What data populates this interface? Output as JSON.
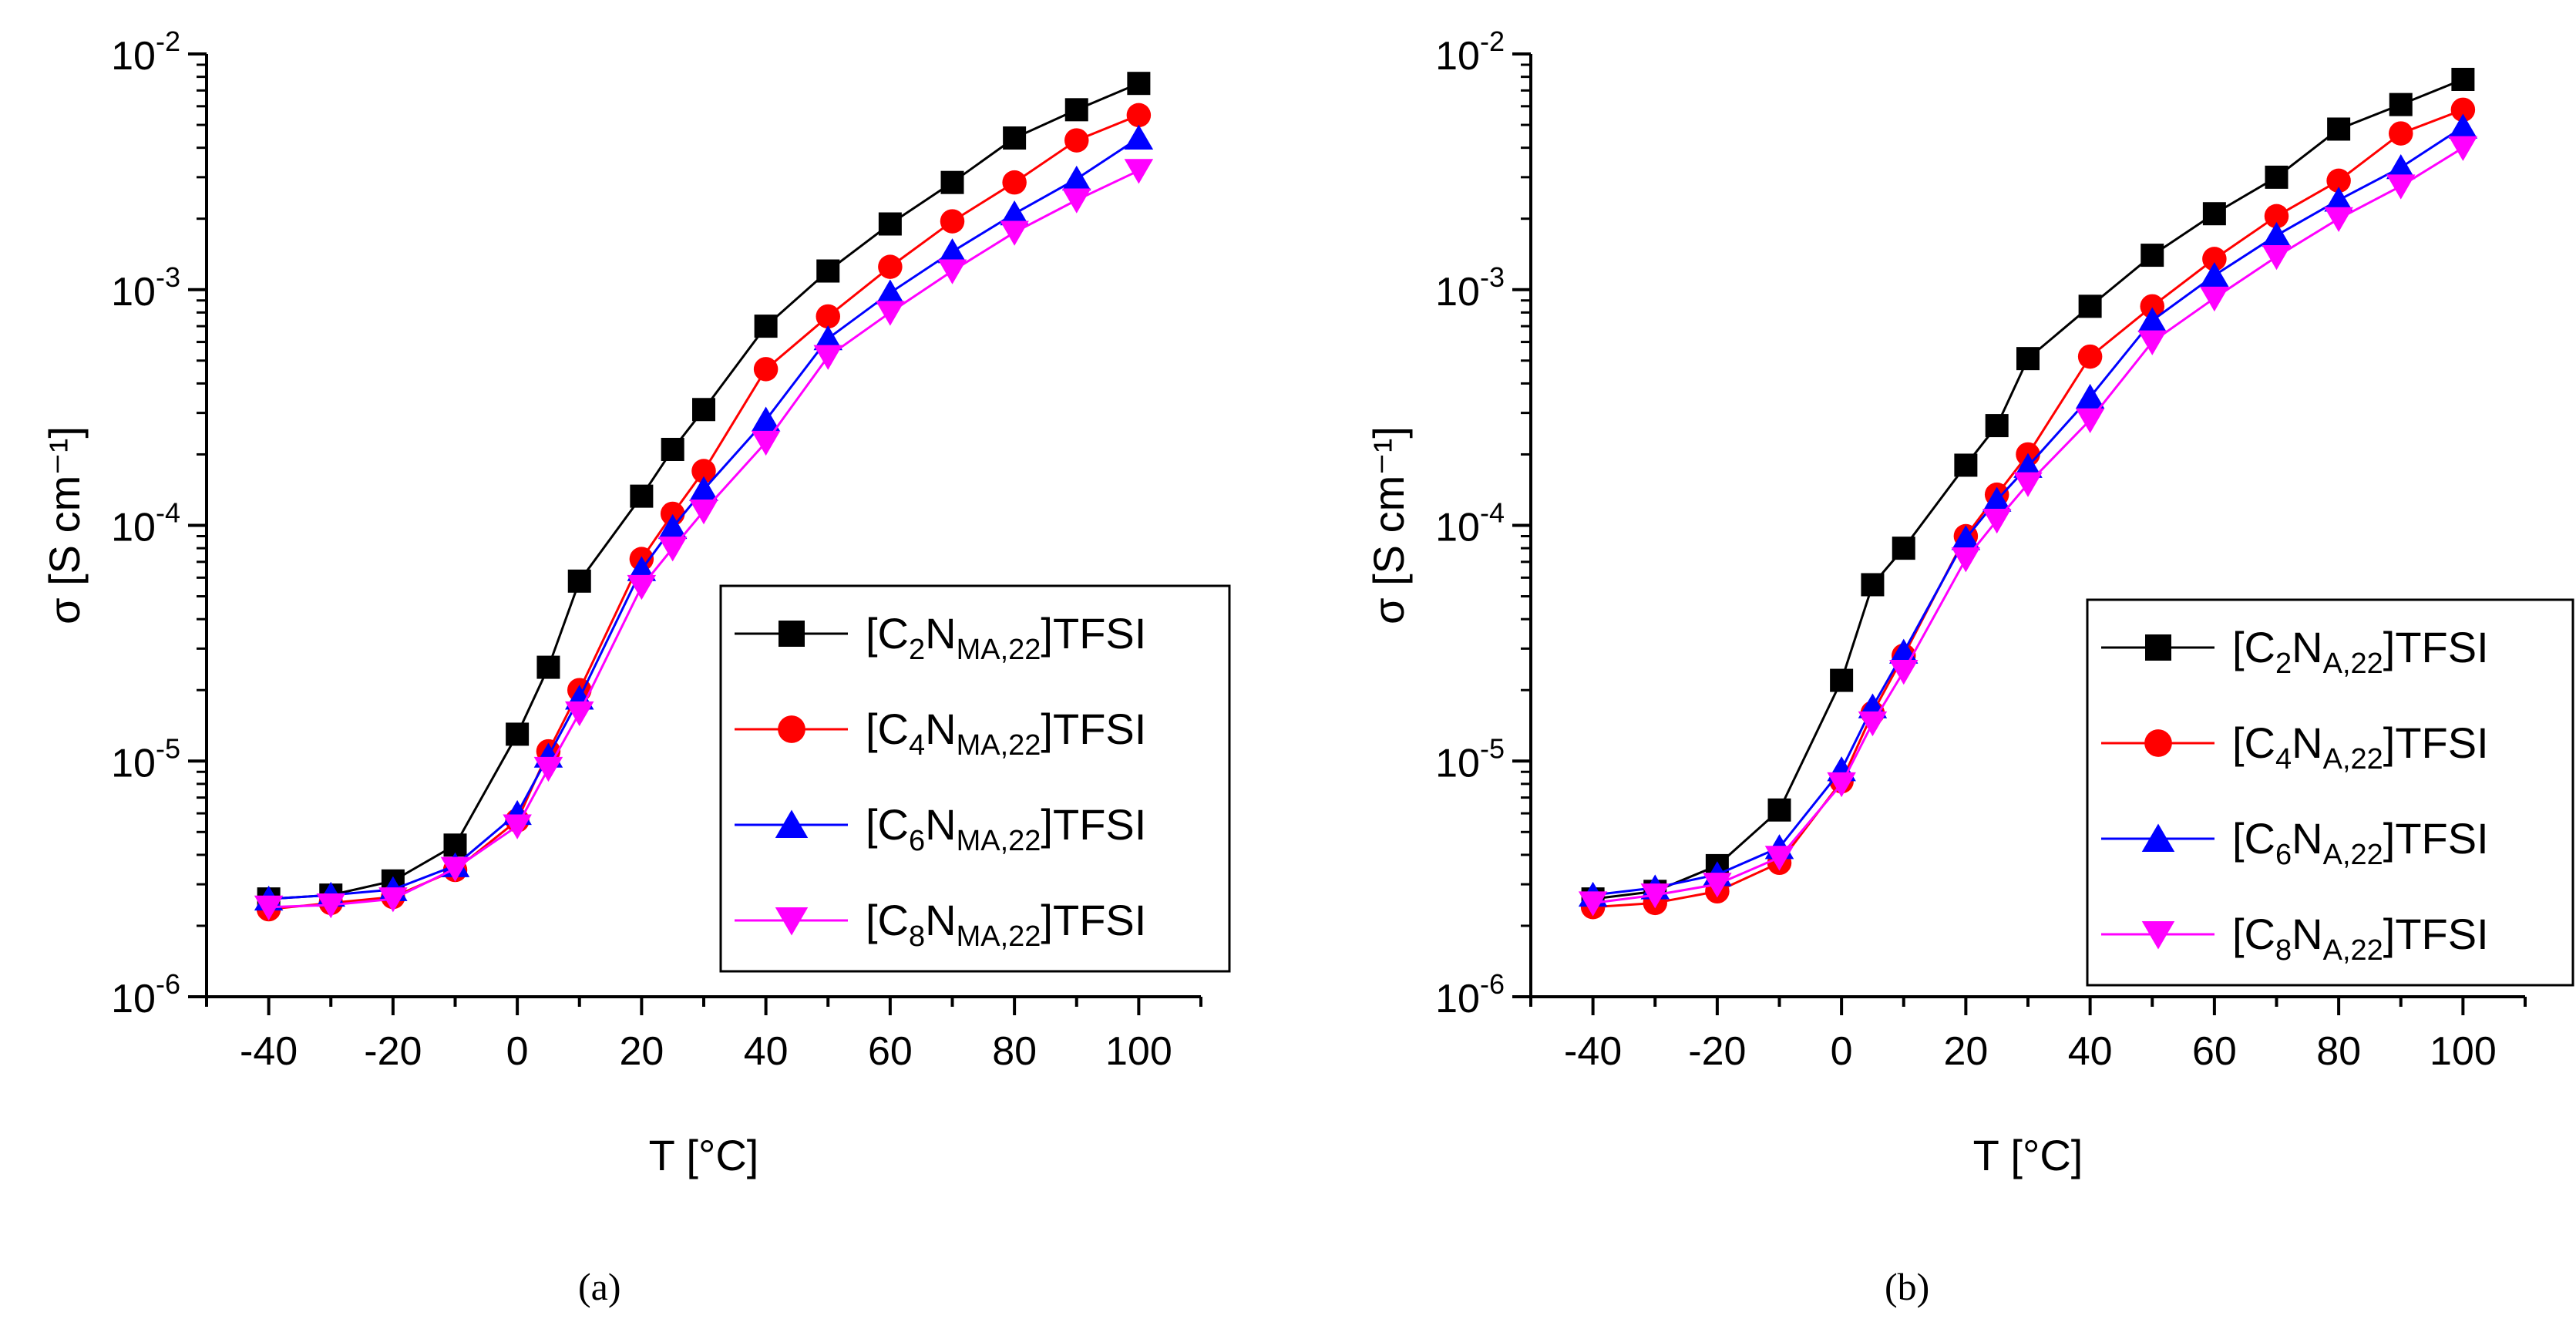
{
  "figure": {
    "panel_labels": [
      "(a)",
      "(b)"
    ]
  },
  "chart_data": [
    {
      "type": "line",
      "panel": "(a)",
      "xlabel": "T [°C]",
      "ylabel": "σ [S cm⁻¹]",
      "xlim": [
        -50,
        110
      ],
      "x_ticks": [
        -40,
        -20,
        0,
        20,
        40,
        60,
        80,
        100
      ],
      "y_scale": "log",
      "ylim": [
        1e-06,
        0.01
      ],
      "y_ticks": [
        {
          "base": "10",
          "exp": "-6"
        },
        {
          "base": "10",
          "exp": "-5"
        },
        {
          "base": "10",
          "exp": "-4"
        },
        {
          "base": "10",
          "exp": "-3"
        },
        {
          "base": "10",
          "exp": "-2"
        }
      ],
      "grid": false,
      "legend_position": "lower-right",
      "x": [
        -40,
        -30,
        -20,
        -10,
        0,
        5,
        10,
        20,
        25,
        30,
        40,
        50,
        60,
        70,
        80,
        90,
        100
      ],
      "series": [
        {
          "legend": {
            "a": "[C",
            "sub1": "2",
            "b": "N",
            "sub2": "MA,22",
            "c": "]TFSI"
          },
          "color": "#000000",
          "marker": "square",
          "values": [
            2.6e-06,
            2.7e-06,
            3.1e-06,
            4.4e-06,
            1.3e-05,
            2.5e-05,
            5.8e-05,
            0.000133,
            0.00021,
            0.00031,
            0.0007,
            0.0012,
            0.0019,
            0.00285,
            0.0044,
            0.0058,
            0.0075
          ]
        },
        {
          "legend": {
            "a": "[C",
            "sub1": "4",
            "b": "N",
            "sub2": "MA,22",
            "c": "]TFSI"
          },
          "color": "#ff0000",
          "marker": "circle",
          "values": [
            2.35e-06,
            2.5e-06,
            2.65e-06,
            3.45e-06,
            5.6e-06,
            1.1e-05,
            2e-05,
            7.2e-05,
            0.000112,
            0.00017,
            0.00046,
            0.00077,
            0.00125,
            0.00195,
            0.00285,
            0.0043,
            0.0055
          ]
        },
        {
          "legend": {
            "a": "[C",
            "sub1": "6",
            "b": "N",
            "sub2": "MA,22",
            "c": "]TFSI"
          },
          "color": "#0000ff",
          "marker": "triangle-up",
          "values": [
            2.6e-06,
            2.7e-06,
            2.85e-06,
            3.6e-06,
            6e-06,
            1.05e-05,
            1.85e-05,
            6.5e-05,
            9.8e-05,
            0.000142,
            0.00028,
            0.00062,
            0.00097,
            0.00145,
            0.0021,
            0.00295,
            0.0044
          ]
        },
        {
          "legend": {
            "a": "[C",
            "sub1": "8",
            "b": "N",
            "sub2": "MA,22",
            "c": "]TFSI"
          },
          "color": "#ff00ff",
          "marker": "triangle-down",
          "values": [
            2.4e-06,
            2.45e-06,
            2.6e-06,
            3.5e-06,
            5.3e-06,
            9.3e-06,
            1.6e-05,
            5.5e-05,
            8e-05,
            0.000115,
            0.000225,
            0.00052,
            0.0008,
            0.0012,
            0.00175,
            0.0024,
            0.0032
          ]
        }
      ]
    },
    {
      "type": "line",
      "panel": "(b)",
      "xlabel": "T [°C]",
      "ylabel": "σ [S cm⁻¹]",
      "xlim": [
        -50,
        110
      ],
      "x_ticks": [
        -40,
        -20,
        0,
        20,
        40,
        60,
        80,
        100
      ],
      "y_scale": "log",
      "ylim": [
        1e-06,
        0.01
      ],
      "y_ticks": [
        {
          "base": "10",
          "exp": "-6"
        },
        {
          "base": "10",
          "exp": "-5"
        },
        {
          "base": "10",
          "exp": "-4"
        },
        {
          "base": "10",
          "exp": "-3"
        },
        {
          "base": "10",
          "exp": "-2"
        }
      ],
      "grid": false,
      "legend_position": "lower-right",
      "x": [
        -40,
        -30,
        -20,
        -10,
        0,
        5,
        10,
        20,
        25,
        30,
        40,
        50,
        60,
        70,
        80,
        90,
        100
      ],
      "series": [
        {
          "legend": {
            "a": "[C",
            "sub1": "2",
            "b": "N",
            "sub2": "A,22",
            "c": "]TFSI"
          },
          "color": "#000000",
          "marker": "square",
          "values": [
            2.6e-06,
            2.8e-06,
            3.6e-06,
            6.2e-06,
            2.2e-05,
            5.6e-05,
            8e-05,
            0.00018,
            0.000265,
            0.00051,
            0.00085,
            0.0014,
            0.0021,
            0.003,
            0.0048,
            0.0061,
            0.0078
          ]
        },
        {
          "legend": {
            "a": "[C",
            "sub1": "4",
            "b": "N",
            "sub2": "A,22",
            "c": "]TFSI"
          },
          "color": "#ff0000",
          "marker": "circle",
          "values": [
            2.4e-06,
            2.5e-06,
            2.8e-06,
            3.7e-06,
            8.2e-06,
            1.6e-05,
            2.8e-05,
            9e-05,
            0.000135,
            0.0002,
            0.00052,
            0.00085,
            0.00135,
            0.00205,
            0.0029,
            0.0046,
            0.0058
          ]
        },
        {
          "legend": {
            "a": "[C",
            "sub1": "6",
            "b": "N",
            "sub2": "A,22",
            "c": "]TFSI"
          },
          "color": "#0000ff",
          "marker": "triangle-up",
          "values": [
            2.7e-06,
            2.9e-06,
            3.3e-06,
            4.3e-06,
            9.2e-06,
            1.7e-05,
            2.9e-05,
            8.8e-05,
            0.000128,
            0.000178,
            0.00035,
            0.00074,
            0.00115,
            0.0017,
            0.0024,
            0.0033,
            0.0049
          ]
        },
        {
          "legend": {
            "a": "[C",
            "sub1": "8",
            "b": "N",
            "sub2": "A,22",
            "c": "]TFSI"
          },
          "color": "#ff00ff",
          "marker": "triangle-down",
          "values": [
            2.5e-06,
            2.7e-06,
            3e-06,
            3.9e-06,
            8e-06,
            1.45e-05,
            2.4e-05,
            7.2e-05,
            0.000105,
            0.00015,
            0.00028,
            0.0006,
            0.00092,
            0.00138,
            0.002,
            0.00275,
            0.004
          ]
        }
      ]
    }
  ]
}
